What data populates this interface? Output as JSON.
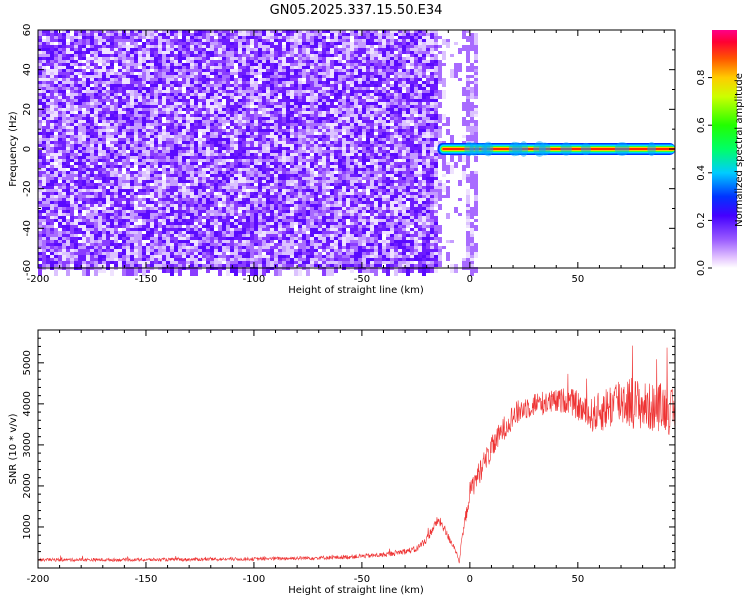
{
  "title": "GN05.2025.337.15.50.E34",
  "chart_data": [
    {
      "type": "heatmap",
      "xlabel": "Height of straight line (km)",
      "ylabel": "Frequency (Hz)",
      "xlim": [
        -200,
        95
      ],
      "ylim": [
        -60,
        60
      ],
      "x_ticks": [
        -200,
        -150,
        -100,
        -50,
        0,
        50
      ],
      "y_ticks": [
        -60,
        -40,
        -20,
        0,
        20,
        40,
        60
      ],
      "colorbar": {
        "label": "Normalized spectral amplitude",
        "range": [
          0,
          1
        ],
        "ticks": [
          "0.0",
          "0.2",
          "0.4",
          "0.6",
          "0.8"
        ],
        "colormap": "rainbow (white-violet-blue-cyan-green-yellow-red-magenta)"
      },
      "features": [
        {
          "region": "x -200 to -15 km",
          "description": "broadband noise spread over all frequencies, normalized amplitude mostly 0.1-0.3"
        },
        {
          "region": "x -2 to 2 km",
          "description": "vertical noise band over all frequencies"
        },
        {
          "region": "x -15 to 95 km, frequency ~0 Hz",
          "description": "narrow signal line at 0 Hz, normalized amplitude ~0.9-1.0"
        }
      ]
    },
    {
      "type": "line",
      "xlabel": "Height of straight line (km)",
      "ylabel": "SNR (10 * v/v)",
      "xlim": [
        -200,
        95
      ],
      "ylim": [
        0,
        5800
      ],
      "x_ticks": [
        -200,
        -150,
        -100,
        -50,
        0,
        50
      ],
      "y_ticks": [
        1000,
        2000,
        3000,
        4000,
        5000
      ],
      "color": "#ee3333",
      "x": [
        -200,
        -150,
        -100,
        -60,
        -40,
        -25,
        -20,
        -15,
        -13,
        -10,
        -7,
        -5,
        -3,
        0,
        5,
        10,
        15,
        20,
        25,
        30,
        40,
        45,
        50,
        55,
        60,
        70,
        75,
        80,
        85,
        90,
        95
      ],
      "y": [
        200,
        200,
        220,
        260,
        320,
        450,
        700,
        1150,
        1080,
        750,
        500,
        150,
        900,
        1850,
        2400,
        2900,
        3350,
        3700,
        3900,
        4000,
        4050,
        4100,
        3950,
        3700,
        3800,
        4100,
        4050,
        3950,
        3900,
        3950,
        3700
      ],
      "noise_amplitude": [
        40,
        40,
        40,
        50,
        60,
        80,
        100,
        120,
        120,
        100,
        80,
        60,
        150,
        250,
        300,
        300,
        300,
        300,
        300,
        300,
        300,
        320,
        350,
        400,
        500,
        650,
        650,
        600,
        600,
        600,
        600
      ]
    }
  ]
}
